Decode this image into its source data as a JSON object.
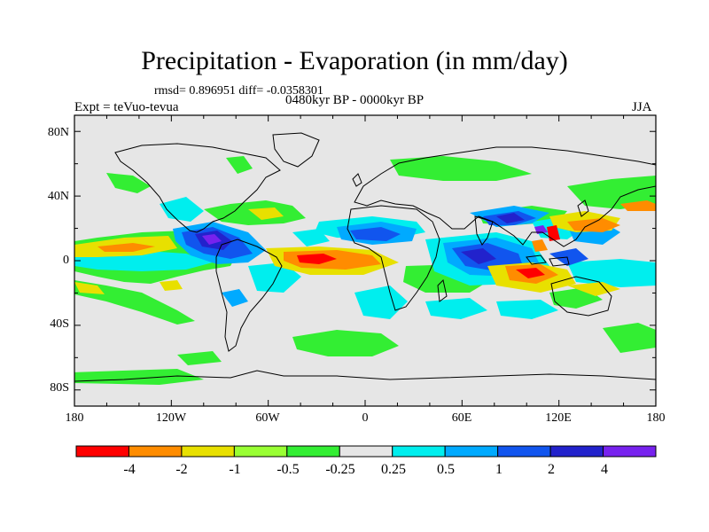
{
  "title": "Precipitation - Evaporation (in mm/day)",
  "stats": "rmsd= 0.896951 diff= -0.0358301",
  "left_label": "Expt = teVuo-tevua",
  "center_label": "0480kyr BP - 0000kyr BP",
  "right_label": "JJA",
  "lat_ticks": [
    "80N",
    "40N",
    "0",
    "40S",
    "80S"
  ],
  "lon_ticks": [
    "180",
    "120W",
    "60W",
    "0",
    "60E",
    "120E",
    "180"
  ],
  "colorbar": {
    "labels": [
      "-4",
      "-2",
      "-1",
      "-0.5",
      "-0.25",
      "0.25",
      "0.5",
      "1",
      "2",
      "4"
    ],
    "colors": [
      "#ff0000",
      "#ff8c00",
      "#e8e000",
      "#99ff33",
      "#33ee33",
      "#e6e6e6",
      "#00eeee",
      "#00aaff",
      "#1155ee",
      "#2222cc",
      "#7722ee"
    ]
  },
  "map_background": "#e6e6e6"
}
